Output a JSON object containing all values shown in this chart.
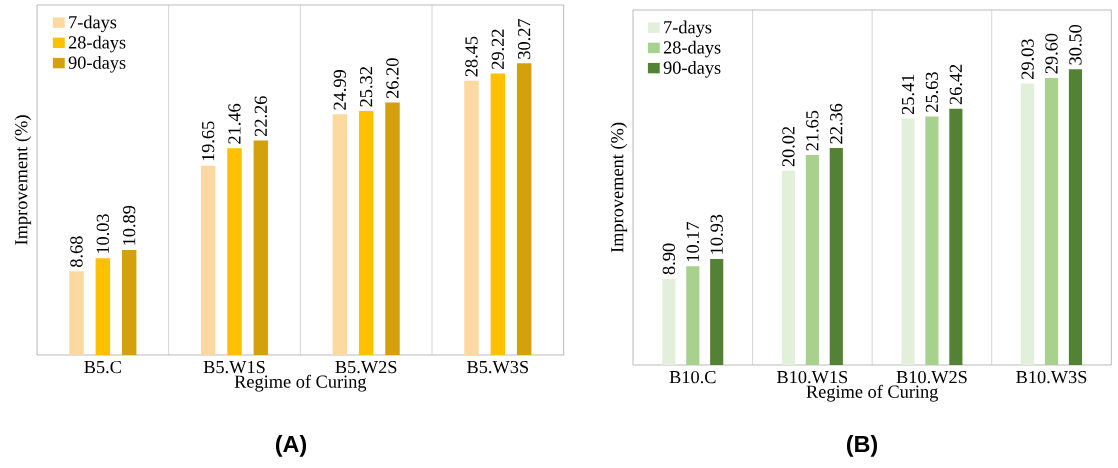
{
  "chart_data": [
    {
      "type": "bar",
      "title": "(A)",
      "xlabel": "Regime of Curing",
      "ylabel": "Improvement (%)",
      "categories": [
        "B5.C",
        "B5.W1S",
        "B5.W2S",
        "B5.W3S"
      ],
      "grid": "x",
      "legend": "top left",
      "series": [
        {
          "name": "7-days",
          "color": "#fdd8a0",
          "values": [
            8.68,
            19.65,
            24.99,
            28.45
          ],
          "value_labels": [
            "8.68",
            "19.65",
            "24.99",
            "28.45"
          ]
        },
        {
          "name": "28-days",
          "color": "#ffc000",
          "values": [
            10.03,
            21.46,
            25.32,
            29.22
          ],
          "value_labels": [
            "10.03",
            "21.46",
            "25.32",
            "29.22"
          ]
        },
        {
          "name": "90-days",
          "color": "#d4a00c",
          "values": [
            10.89,
            22.26,
            26.2,
            30.27
          ],
          "value_labels": [
            "10.89",
            "22.26",
            "26.20",
            "30.27"
          ]
        }
      ]
    },
    {
      "type": "bar",
      "title": "(B)",
      "xlabel": "Regime of Curing",
      "ylabel": "Improvement (%)",
      "categories": [
        "B10.C",
        "B10.W1S",
        "B10.W2S",
        "B10.W3S"
      ],
      "grid": "x",
      "legend": "top left",
      "series": [
        {
          "name": "7-days",
          "color": "#e2efda",
          "values": [
            8.9,
            20.02,
            25.41,
            29.03
          ],
          "value_labels": [
            "8.90",
            "20.02",
            "25.41",
            "29.03"
          ]
        },
        {
          "name": "28-days",
          "color": "#a9d18e",
          "values": [
            10.17,
            21.65,
            25.63,
            29.6
          ],
          "value_labels": [
            "10.17",
            "21.65",
            "25.63",
            "29.60"
          ]
        },
        {
          "name": "90-days",
          "color": "#548235",
          "values": [
            10.93,
            22.36,
            26.42,
            30.5
          ],
          "value_labels": [
            "10.93",
            "22.36",
            "26.42",
            "30.50"
          ]
        }
      ]
    }
  ]
}
